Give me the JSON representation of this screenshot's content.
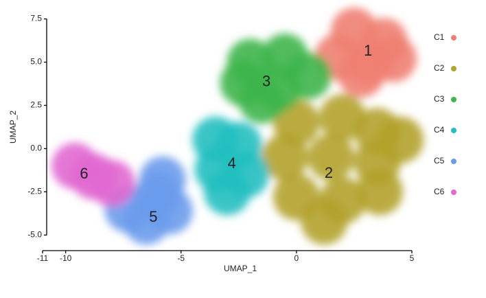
{
  "chart_data": {
    "type": "scatter",
    "x_label": "UMAP_1",
    "y_label": "UMAP_2",
    "xlim": [
      -11,
      5
    ],
    "xticks": [
      -11,
      -10,
      -5,
      0,
      5
    ],
    "ylim": [
      -5.9,
      7.8
    ],
    "yticks": [
      {
        "value": -5,
        "label": "-5.0"
      },
      -2.5,
      {
        "value": 0,
        "label": "0.0"
      },
      2.5,
      {
        "value": 5,
        "label": "5.0"
      },
      7.5
    ],
    "series": [
      {
        "name": "C1",
        "label": "1",
        "color": "#f07f72",
        "label_x": 3.1,
        "label_y": 5.6,
        "x": [
          2.5,
          3.8,
          1.8,
          3.2,
          4.2,
          2.8
        ],
        "y": [
          6.8,
          6.2,
          5.3,
          5.0,
          5.2,
          4.3
        ]
      },
      {
        "name": "C2",
        "label": "2",
        "color": "#b3a22b",
        "label_x": 1.4,
        "label_y": -1.45,
        "x": [
          0,
          2,
          3.5,
          -0.5,
          1.5,
          3.5,
          0,
          2,
          3.6,
          1.2,
          4.5
        ],
        "y": [
          1.5,
          1.8,
          1,
          -0.5,
          -0.5,
          -0.8,
          -2.8,
          -3,
          -2.5,
          -4.2,
          0.5
        ]
      },
      {
        "name": "C3",
        "label": "3",
        "color": "#3db54b",
        "label_x": -1.3,
        "label_y": 3.85,
        "x": [
          -2,
          -0.5,
          -2.3,
          -0.8,
          0.5,
          -1.5
        ],
        "y": [
          5,
          5.3,
          3.8,
          3.5,
          4.2,
          2.8
        ]
      },
      {
        "name": "C4",
        "label": "4",
        "color": "#23bfc0",
        "label_x": -2.8,
        "label_y": -0.9,
        "x": [
          -3.5,
          -2.5,
          -3.4,
          -2.2,
          -3
        ],
        "y": [
          0.5,
          0.2,
          -1.2,
          -1.5,
          -2.5
        ]
      },
      {
        "name": "C5",
        "label": "5",
        "color": "#6b9bec",
        "label_x": -6.2,
        "label_y": -4.0,
        "x": [
          -7.3,
          -6.5,
          -5.5,
          -6,
          -5.8
        ],
        "y": [
          -3.5,
          -4.2,
          -3.6,
          -2.7,
          -1.8
        ]
      },
      {
        "name": "C6",
        "label": "6",
        "color": "#e168d0",
        "label_x": -9.2,
        "label_y": -1.5,
        "x": [
          -9.6,
          -8.8,
          -8
        ],
        "y": [
          -1,
          -1.6,
          -2
        ]
      }
    ]
  }
}
